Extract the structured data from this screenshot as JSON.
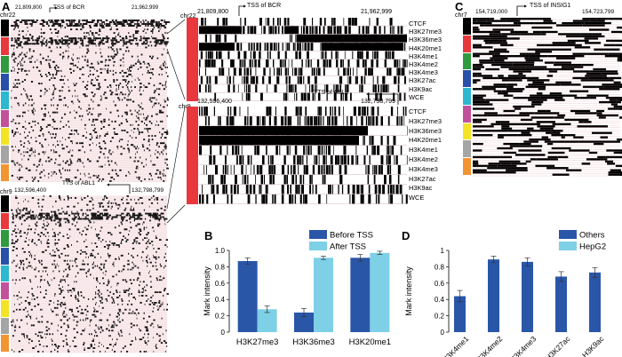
{
  "panels": {
    "a": {
      "letter": "A",
      "block1": {
        "chrom": "chr22",
        "start": "21,809,800",
        "end": "21,962,999",
        "tss": "TSS of BCR"
      },
      "block2": {
        "chrom": "chr9",
        "start": "132,596,400",
        "end": "132,798,799",
        "tss": "TTS of ABL1"
      },
      "zoom1": {
        "chrom": "chr22",
        "start": "21,809,800",
        "end": "21,962,999",
        "tss": "TSS of BCR"
      },
      "zoom2": {
        "chrom": "chr9",
        "start": "132,596,400",
        "end": "132,798,799",
        "tss": "TTS of ABL1"
      },
      "tracks": [
        "CTCF",
        "H3K27me3",
        "H3K36me3",
        "H4K20me1",
        "H3K4me1",
        "H3K4me2",
        "H3K4me3",
        "H3K27ac",
        "H3K9ac",
        "WCE"
      ],
      "cell_colors": [
        "#000000",
        "#e8383d",
        "#2f9a3f",
        "#2a4fa8",
        "#2bb8d0",
        "#c2519c",
        "#f2e324",
        "#a5a5a5",
        "#f39432"
      ]
    },
    "b": {
      "letter": "B"
    },
    "c": {
      "letter": "C",
      "chrom": "chr7",
      "start": "154,719,000",
      "end": "154,723,799",
      "tss": "TSS of INSIG1"
    },
    "d": {
      "letter": "D"
    }
  },
  "chart_data": [
    {
      "type": "bar",
      "categories": [
        "H3K27me3",
        "H3K36me3",
        "H3K20me1"
      ],
      "series": [
        {
          "name": "Before TSS",
          "values": [
            0.87,
            0.24,
            0.91
          ],
          "errors": [
            0.04,
            0.05,
            0.04
          ],
          "color": "#2a56a8"
        },
        {
          "name": "After TSS",
          "values": [
            0.28,
            0.91,
            0.97
          ],
          "errors": [
            0.04,
            0.02,
            0.02
          ],
          "color": "#7dd0e6"
        }
      ],
      "xlabel": "",
      "ylabel": "Mark intensity",
      "ylim": [
        0,
        1.0
      ],
      "yticks": [
        "0",
        "0.2",
        "0.4",
        "0.6",
        "0.8",
        "1.0"
      ],
      "legend": "top-right"
    },
    {
      "type": "bar",
      "categories": [
        "H3K4me1",
        "H3K4me2",
        "H3K4me3",
        "H3K27ac",
        "H3K9ac"
      ],
      "series": [
        {
          "name": "Others",
          "values": [
            0.44,
            0.89,
            0.86,
            0.68,
            0.73
          ],
          "errors": [
            0.07,
            0.04,
            0.05,
            0.06,
            0.06
          ],
          "color": "#2a56a8"
        },
        {
          "name": "HepG2",
          "values": [
            0,
            0,
            0,
            0,
            0
          ],
          "errors": [
            0,
            0,
            0,
            0,
            0
          ],
          "color": "#7dd0e6"
        }
      ],
      "xlabel": "",
      "ylabel": "Mark intensity",
      "ylim": [
        0,
        1.0
      ],
      "yticks": [
        "0",
        "0.2",
        "0.4",
        "0.6",
        "0.8",
        "1"
      ],
      "legend": "top-right"
    }
  ]
}
